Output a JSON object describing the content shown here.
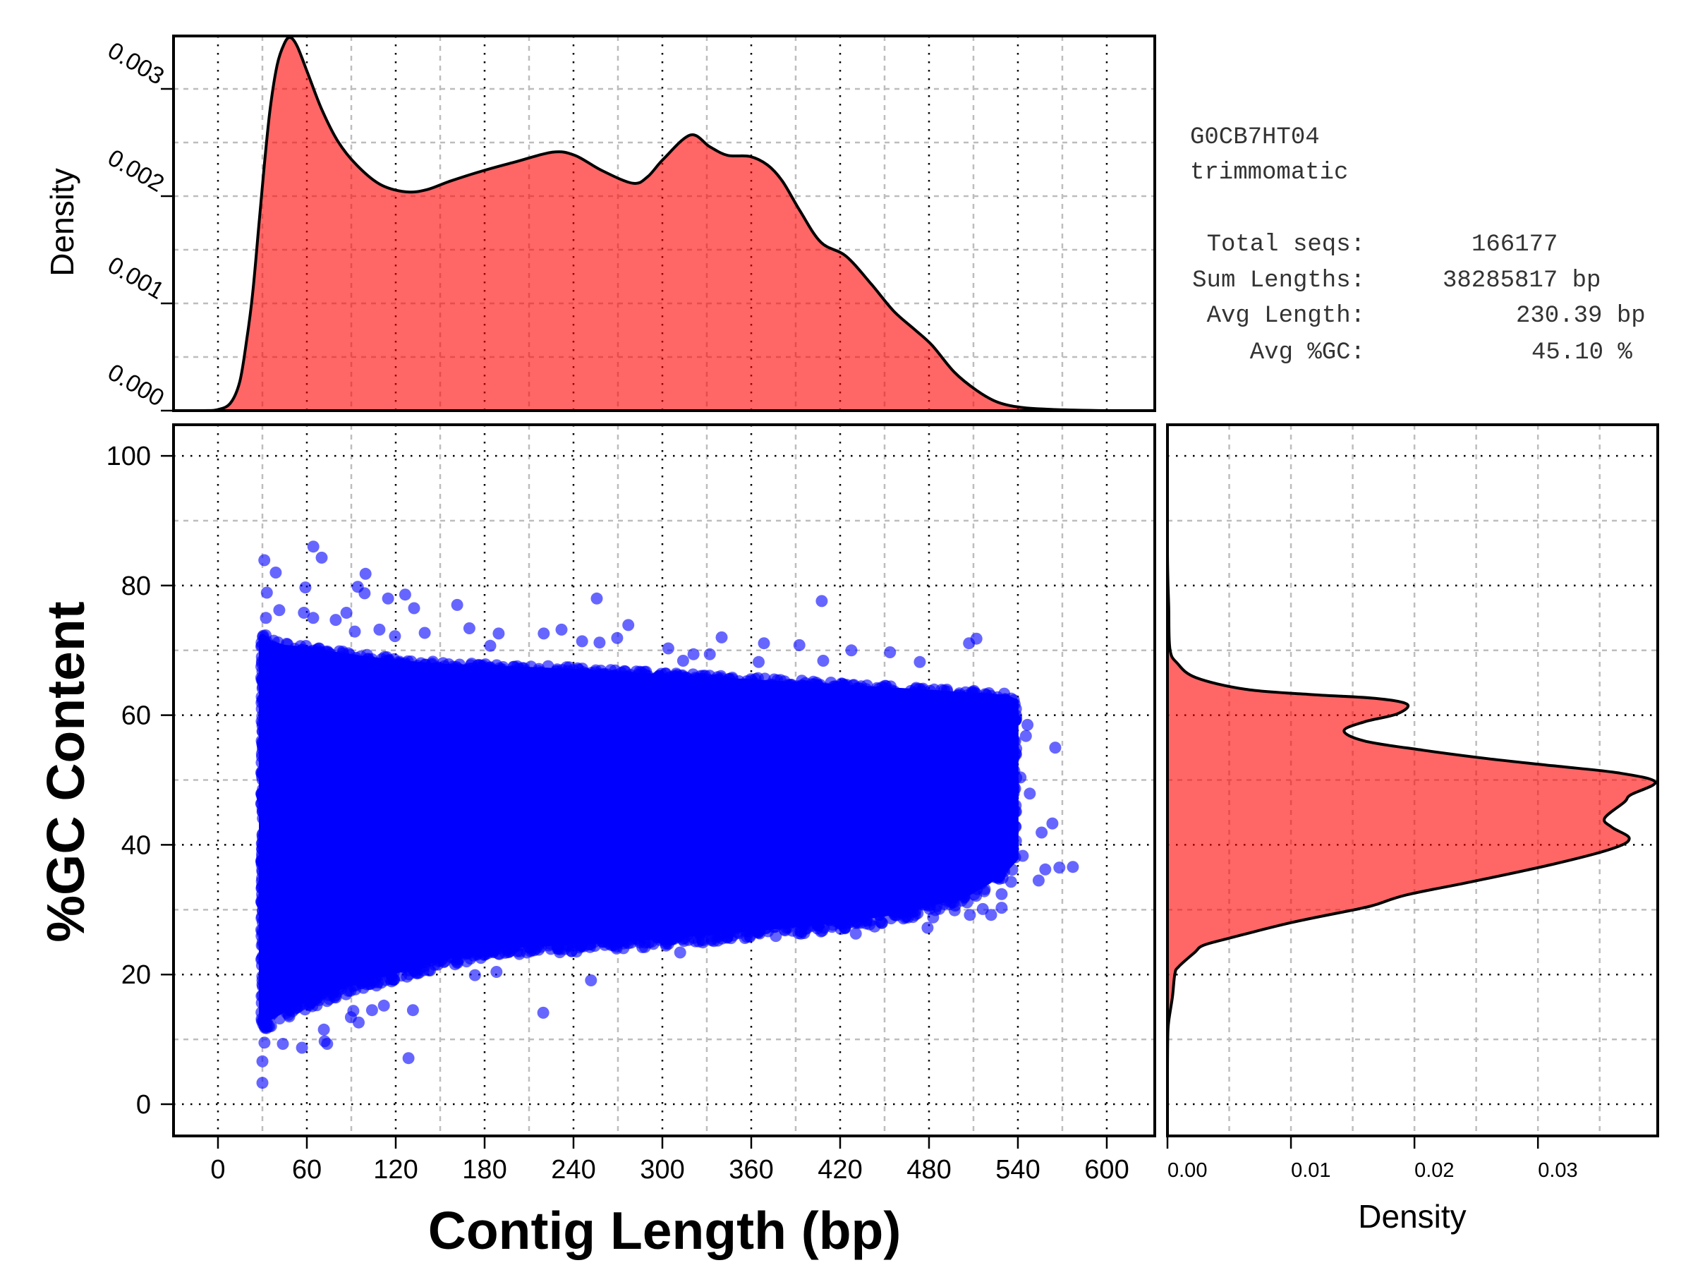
{
  "info_box": {
    "sample_id": "G0CB7HT04",
    "method": "trimmomatic",
    "stats": [
      {
        "label": "Total seqs:",
        "value": "166177"
      },
      {
        "label": "Sum Lengths:",
        "value": "38285817 bp"
      },
      {
        "label": "Avg Length:",
        "value": "230.39 bp"
      },
      {
        "label": "Avg %GC:",
        "value": "45.10 %"
      }
    ]
  },
  "colors": {
    "density_fill": "#FF0000",
    "density_fill_opacity": 0.6,
    "density_line": "#000000",
    "points": "#0000FF",
    "point_opacity": 0.6,
    "grid_major": "#000000",
    "grid_minor": "#BDBDBD"
  },
  "chart_data": [
    {
      "type": "scatter",
      "name": "gc_vs_length",
      "xlabel": "Contig Length (bp)",
      "ylabel": "%GC Content",
      "xlim": [
        -30,
        632.4
      ],
      "ylim": [
        -4.9,
        104.8
      ],
      "xticks": [
        0,
        60,
        120,
        180,
        240,
        300,
        360,
        420,
        480,
        540,
        600
      ],
      "xtick_labels": [
        "0",
        "60",
        "120",
        "180",
        "240",
        "300",
        "360",
        "420",
        "480",
        "540",
        "600"
      ],
      "yticks": [
        0,
        20,
        40,
        60,
        80,
        100
      ],
      "ytick_labels": [
        "0",
        "20",
        "40",
        "60",
        "80",
        "100"
      ],
      "grid": true,
      "dense_region": {
        "bp": [
          30,
          35,
          45,
          60,
          90,
          120,
          150,
          180,
          210,
          240,
          270,
          300,
          330,
          360,
          390,
          420,
          450,
          480,
          505,
          520,
          532,
          538
        ],
        "gc_upper": [
          72,
          71,
          70.3,
          70,
          68.8,
          68,
          67.4,
          67.1,
          66.9,
          66.6,
          66.2,
          65.8,
          65.4,
          65,
          64.6,
          64.2,
          63.8,
          63.4,
          63,
          62.8,
          62.6,
          62
        ],
        "gc_lower": [
          12.7,
          13.5,
          14.8,
          16.3,
          18.8,
          20.7,
          22.6,
          24.3,
          24.8,
          25.1,
          25.5,
          26,
          26.6,
          27.2,
          27.8,
          28.5,
          29.5,
          31,
          32.5,
          34.5,
          36.5,
          38
        ]
      },
      "outliers": [
        [
          31.3,
          83.9
        ],
        [
          39,
          82
        ],
        [
          64.4,
          86
        ],
        [
          70,
          84.3
        ],
        [
          99.6,
          81.8
        ],
        [
          59,
          79.7
        ],
        [
          94.4,
          79.8
        ],
        [
          99,
          78.8
        ],
        [
          33,
          78.9
        ],
        [
          114.8,
          78
        ],
        [
          126.4,
          78.6
        ],
        [
          132.4,
          76.5
        ],
        [
          161.5,
          77
        ],
        [
          169.7,
          73.4
        ],
        [
          139.6,
          72.7
        ],
        [
          255.7,
          78
        ],
        [
          219.9,
          72.6
        ],
        [
          231.9,
          73.2
        ],
        [
          245.8,
          71.4
        ],
        [
          257.6,
          71.2
        ],
        [
          277,
          73.9
        ],
        [
          189.5,
          72.6
        ],
        [
          183.8,
          70.7
        ],
        [
          58,
          75.8
        ],
        [
          64.3,
          75
        ],
        [
          79.5,
          74.7
        ],
        [
          86.7,
          75.8
        ],
        [
          92.4,
          72.9
        ],
        [
          109,
          73.2
        ],
        [
          119.5,
          72.2
        ],
        [
          41.4,
          76.2
        ],
        [
          32.4,
          75
        ],
        [
          269.5,
          71.9
        ],
        [
          304,
          70.3
        ],
        [
          340,
          72
        ],
        [
          368.6,
          71.1
        ],
        [
          392.5,
          70.8
        ],
        [
          407.6,
          77.6
        ],
        [
          427.6,
          70
        ],
        [
          453.7,
          69.7
        ],
        [
          473.8,
          68.2
        ],
        [
          512,
          71.8
        ],
        [
          507,
          71.1
        ],
        [
          321,
          69.4
        ],
        [
          332,
          69.4
        ],
        [
          314,
          68.4
        ],
        [
          365,
          68.2
        ],
        [
          408.6,
          68.4
        ],
        [
          30,
          3.3
        ],
        [
          30,
          6.6
        ],
        [
          31.4,
          9.5
        ],
        [
          43.8,
          9.3
        ],
        [
          56.7,
          8.7
        ],
        [
          73.7,
          9.3
        ],
        [
          72,
          9.7
        ],
        [
          128.6,
          7.1
        ],
        [
          95,
          12.6
        ],
        [
          91.4,
          14.4
        ],
        [
          104,
          14.5
        ],
        [
          112,
          15.2
        ],
        [
          131.6,
          14.5
        ],
        [
          219.6,
          14.1
        ],
        [
          251.8,
          19.1
        ],
        [
          312,
          23.4
        ],
        [
          173.5,
          19.9
        ],
        [
          188,
          20.4
        ],
        [
          89.7,
          13.4
        ],
        [
          71.5,
          11.5
        ],
        [
          565.2,
          55
        ],
        [
          577.1,
          36.6
        ],
        [
          568,
          36.5
        ],
        [
          554,
          34.5
        ],
        [
          558.5,
          36.2
        ],
        [
          563.3,
          43.3
        ],
        [
          556,
          41.9
        ],
        [
          548,
          47.9
        ],
        [
          546.5,
          58.5
        ],
        [
          545.4,
          56.8
        ],
        [
          541.8,
          50.4
        ],
        [
          535.4,
          52.2
        ],
        [
          529,
          30.3
        ],
        [
          521.9,
          29.2
        ],
        [
          516.3,
          30.1
        ],
        [
          507.6,
          29.2
        ],
        [
          497.3,
          29.9
        ],
        [
          479,
          27.2
        ],
        [
          482.8,
          28.8
        ],
        [
          443.3,
          27.4
        ],
        [
          430.6,
          26.3
        ],
        [
          409,
          27.2
        ],
        [
          529,
          32.4
        ],
        [
          535.4,
          34.3
        ],
        [
          543.3,
          38.3
        ]
      ]
    },
    {
      "type": "area",
      "name": "length_density",
      "ylabel": "Density",
      "x": [
        -30,
        -10,
        0,
        8.4,
        14.7,
        19.4,
        23.4,
        27.3,
        31.3,
        35.2,
        39.9,
        44.7,
        48.6,
        53.4,
        60.5,
        70,
        81,
        93.6,
        109.4,
        126.8,
        141,
        156.8,
        179.7,
        201,
        226,
        241,
        259,
        280,
        290,
        301,
        319,
        332,
        344,
        359,
        371,
        381,
        393,
        407,
        424,
        441,
        456,
        470,
        482,
        497,
        512,
        526,
        542,
        565,
        600,
        632.4
      ],
      "y": [
        0,
        0,
        1e-05,
        7e-05,
        0.00027,
        0.00066,
        0.00109,
        0.00168,
        0.00229,
        0.00281,
        0.00322,
        0.00342,
        0.00348,
        0.0034,
        0.00315,
        0.00281,
        0.00251,
        0.00229,
        0.00211,
        0.00204,
        0.00206,
        0.00214,
        0.00224,
        0.00232,
        0.00241,
        0.00238,
        0.00224,
        0.00212,
        0.00218,
        0.00235,
        0.00257,
        0.00246,
        0.00238,
        0.00237,
        0.00229,
        0.00214,
        0.00186,
        0.00157,
        0.00144,
        0.00118,
        0.00093,
        0.00076,
        0.00061,
        0.00036,
        0.00019,
        8e-05,
        3e-05,
        1e-05,
        0,
        0
      ],
      "xlim": [
        -30,
        632.4
      ],
      "ylim": [
        0,
        0.003493
      ],
      "yticks": [
        0,
        0.001,
        0.002,
        0.003
      ],
      "ytick_labels": [
        "0.000",
        "0.001",
        "0.002",
        "0.003"
      ],
      "grid": true
    },
    {
      "type": "area",
      "name": "gc_density",
      "orientation": "horizontal",
      "xlabel": "Density",
      "gc": [
        -4.9,
        5,
        10.7,
        12.8,
        16.5,
        20.1,
        21.2,
        23.4,
        24.5,
        25.6,
        28,
        30.1,
        30.8,
        32.3,
        34.3,
        37,
        39.4,
        41,
        42.7,
        44.1,
        46.6,
        47.7,
        49.7,
        51.1,
        52.2,
        53.3,
        54.6,
        56,
        57.6,
        59,
        60.2,
        61.7,
        62.6,
        63.2,
        64,
        65.8,
        68,
        70.2,
        76.7,
        85,
        104.8
      ],
      "density": [
        0,
        0,
        3e-05,
        0.0001,
        0.0004,
        0.0006,
        0.0009,
        0.0022,
        0.0029,
        0.005,
        0.01,
        0.0154,
        0.0169,
        0.0194,
        0.0246,
        0.0312,
        0.036,
        0.0374,
        0.036,
        0.0354,
        0.037,
        0.0375,
        0.0395,
        0.0365,
        0.0312,
        0.0259,
        0.0207,
        0.016,
        0.0143,
        0.016,
        0.0186,
        0.0194,
        0.0168,
        0.0115,
        0.0063,
        0.0023,
        0.0008,
        0.0002,
        0.0001,
        0,
        0
      ],
      "xlim": [
        0,
        0.0397
      ],
      "ylim": [
        -4.9,
        104.8
      ],
      "xticks": [
        0,
        0.01,
        0.02,
        0.03
      ],
      "xtick_labels": [
        "0.00",
        "0.01",
        "0.02",
        "0.03"
      ],
      "grid": true
    }
  ]
}
